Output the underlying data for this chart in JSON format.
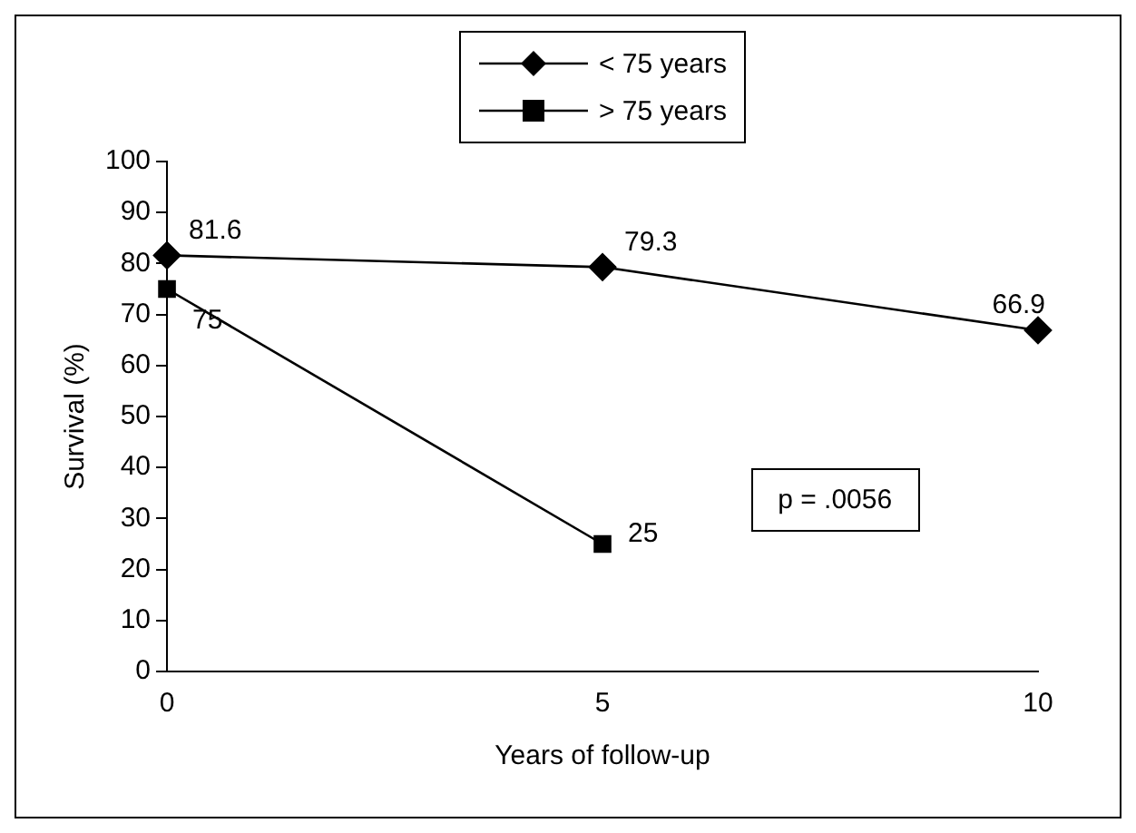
{
  "chart_data": {
    "type": "line",
    "xlabel": "Years of follow-up",
    "ylabel": "Survival (%)",
    "xlim": [
      0,
      10
    ],
    "xticks": [
      0,
      5,
      10
    ],
    "ylim": [
      0,
      100
    ],
    "yticks": [
      0,
      10,
      20,
      30,
      40,
      50,
      60,
      70,
      80,
      90,
      100
    ],
    "grid": false,
    "legend": "top",
    "data_labels": true,
    "line_style": "solid",
    "annotations": [
      "p = .0056"
    ],
    "series": [
      {
        "name": "< 75 years",
        "color": "#000000",
        "marker": "diamond",
        "x": [
          0,
          5,
          10
        ],
        "values": [
          81.6,
          79.3,
          66.9
        ]
      },
      {
        "name": "> 75 years",
        "color": "#000000",
        "marker": "square",
        "x": [
          0,
          5
        ],
        "values": [
          75,
          25
        ]
      }
    ]
  }
}
